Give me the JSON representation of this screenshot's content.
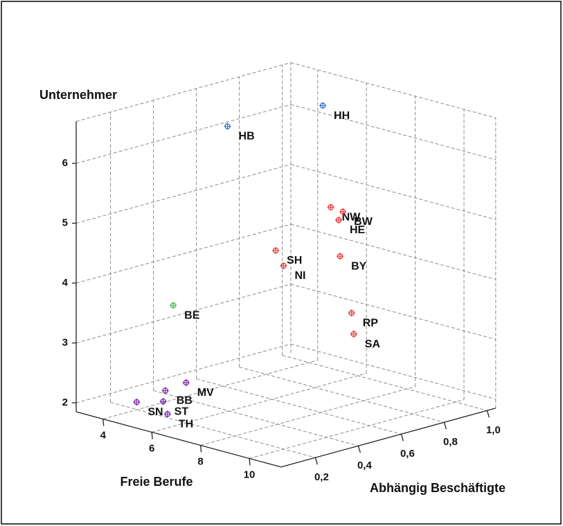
{
  "chart_data": {
    "type": "scatter3d",
    "xlabel": "Freie Berufe",
    "ylabel": "Abhängig Beschäftigte",
    "zlabel": "Unternehmer",
    "xlim": [
      2.9,
      11.3
    ],
    "ylim": [
      0.04,
      1.04
    ],
    "zlim": [
      1.85,
      6.7
    ],
    "xticks": [
      4,
      6,
      8,
      10
    ],
    "yticks": [
      {
        "value": 0.2,
        "label": "0,2"
      },
      {
        "value": 0.4,
        "label": "0,4"
      },
      {
        "value": 0.6,
        "label": "0,6"
      },
      {
        "value": 0.8,
        "label": "0,8"
      },
      {
        "value": 1.0,
        "label": "1,0"
      }
    ],
    "zticks": [
      2,
      3,
      4,
      5,
      6
    ],
    "grid": true,
    "points": [
      {
        "label": "HH",
        "x": 5,
        "y": 0.95,
        "z": 6.3,
        "color": "#3b6fc8"
      },
      {
        "label": "HB",
        "x": 4,
        "y": 0.62,
        "z": 6.17,
        "color": "#3b6fc8"
      },
      {
        "label": "NW",
        "x": 7,
        "y": 0.76,
        "z": 5.01,
        "color": "#e8332f"
      },
      {
        "label": "BW",
        "x": 7.5,
        "y": 0.76,
        "z": 4.99,
        "color": "#e8332f"
      },
      {
        "label": "HE",
        "x": 7.5,
        "y": 0.74,
        "z": 4.87,
        "color": "#e8332f"
      },
      {
        "label": "BY",
        "x": 8,
        "y": 0.69,
        "z": 4.37,
        "color": "#e8332f"
      },
      {
        "label": "SH",
        "x": 8,
        "y": 0.39,
        "z": 4.76,
        "color": "#e8332f"
      },
      {
        "label": "NI",
        "x": 8.5,
        "y": 0.37,
        "z": 4.58,
        "color": "#e8332f"
      },
      {
        "label": "BE",
        "x": 6,
        "y": 0.14,
        "z": 3.87,
        "color": "#3cbf3c"
      },
      {
        "label": "RP",
        "x": 9,
        "y": 0.63,
        "z": 3.59,
        "color": "#e8332f"
      },
      {
        "label": "SA",
        "x": 9,
        "y": 0.64,
        "z": 3.23,
        "color": "#e8332f"
      },
      {
        "label": "MV",
        "x": 6,
        "y": 0.2,
        "z": 2.52,
        "color": "#7a1fa6"
      },
      {
        "label": "BB",
        "x": 5.5,
        "y": 0.16,
        "z": 2.37,
        "color": "#7a1fa6"
      },
      {
        "label": "SN",
        "x": 4.5,
        "y": 0.14,
        "z": 2.09,
        "color": "#7a1fa6"
      },
      {
        "label": "ST",
        "x": 5.5,
        "y": 0.15,
        "z": 2.2,
        "color": "#7a1fa6"
      },
      {
        "label": "TH",
        "x": 5.5,
        "y": 0.17,
        "z": 1.97,
        "color": "#7a1fa6"
      }
    ]
  }
}
